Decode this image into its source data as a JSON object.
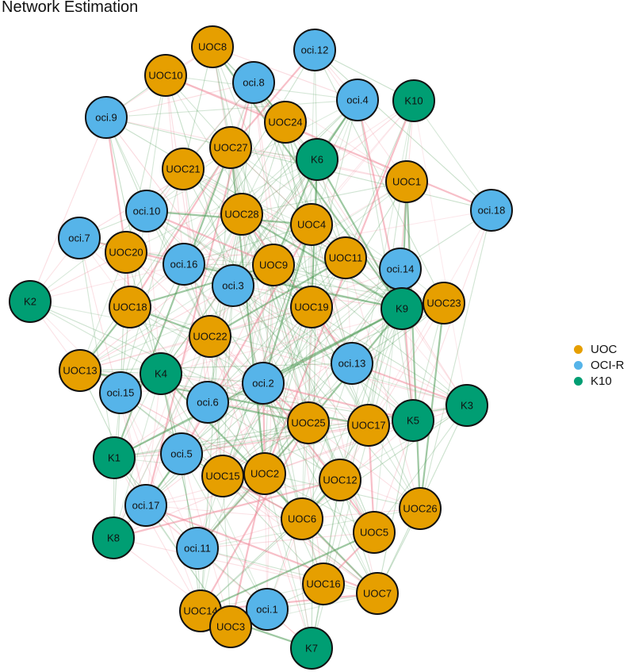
{
  "title": "Network Estimation",
  "legend": [
    {
      "label": "UOC",
      "color": "#E69F00"
    },
    {
      "label": "OCI-R",
      "color": "#56B4E9"
    },
    {
      "label": "K10",
      "color": "#009E73"
    }
  ],
  "edge_colors": {
    "positive": "#4e9a56",
    "negative": "#f08a9a"
  },
  "nodes": [
    {
      "id": "UOC8",
      "group": "UOC"
    },
    {
      "id": "oci.12",
      "group": "OCI-R"
    },
    {
      "id": "UOC10",
      "group": "UOC"
    },
    {
      "id": "oci.8",
      "group": "OCI-R"
    },
    {
      "id": "oci.4",
      "group": "OCI-R"
    },
    {
      "id": "K10",
      "group": "K10"
    },
    {
      "id": "oci.9",
      "group": "OCI-R"
    },
    {
      "id": "UOC24",
      "group": "UOC"
    },
    {
      "id": "UOC27",
      "group": "UOC"
    },
    {
      "id": "K6",
      "group": "K10"
    },
    {
      "id": "UOC21",
      "group": "UOC"
    },
    {
      "id": "UOC1",
      "group": "UOC"
    },
    {
      "id": "oci.18",
      "group": "OCI-R"
    },
    {
      "id": "oci.10",
      "group": "OCI-R"
    },
    {
      "id": "UOC28",
      "group": "UOC"
    },
    {
      "id": "UOC4",
      "group": "UOC"
    },
    {
      "id": "oci.7",
      "group": "OCI-R"
    },
    {
      "id": "UOC20",
      "group": "UOC"
    },
    {
      "id": "oci.16",
      "group": "OCI-R"
    },
    {
      "id": "UOC9",
      "group": "UOC"
    },
    {
      "id": "UOC11",
      "group": "UOC"
    },
    {
      "id": "oci.14",
      "group": "OCI-R"
    },
    {
      "id": "oci.3",
      "group": "OCI-R"
    },
    {
      "id": "UOC18",
      "group": "UOC"
    },
    {
      "id": "UOC19",
      "group": "UOC"
    },
    {
      "id": "UOC23",
      "group": "UOC"
    },
    {
      "id": "K2",
      "group": "K10"
    },
    {
      "id": "K9",
      "group": "K10"
    },
    {
      "id": "UOC22",
      "group": "UOC"
    },
    {
      "id": "oci.13",
      "group": "OCI-R"
    },
    {
      "id": "UOC13",
      "group": "UOC"
    },
    {
      "id": "K4",
      "group": "K10"
    },
    {
      "id": "oci.2",
      "group": "OCI-R"
    },
    {
      "id": "oci.15",
      "group": "OCI-R"
    },
    {
      "id": "oci.6",
      "group": "OCI-R"
    },
    {
      "id": "K3",
      "group": "K10"
    },
    {
      "id": "K5",
      "group": "K10"
    },
    {
      "id": "UOC25",
      "group": "UOC"
    },
    {
      "id": "UOC17",
      "group": "UOC"
    },
    {
      "id": "K1",
      "group": "K10"
    },
    {
      "id": "oci.5",
      "group": "OCI-R"
    },
    {
      "id": "UOC2",
      "group": "UOC"
    },
    {
      "id": "UOC15",
      "group": "UOC"
    },
    {
      "id": "UOC12",
      "group": "UOC"
    },
    {
      "id": "UOC26",
      "group": "UOC"
    },
    {
      "id": "oci.17",
      "group": "OCI-R"
    },
    {
      "id": "UOC6",
      "group": "UOC"
    },
    {
      "id": "UOC5",
      "group": "UOC"
    },
    {
      "id": "K8",
      "group": "K10"
    },
    {
      "id": "oci.11",
      "group": "OCI-R"
    },
    {
      "id": "UOC16",
      "group": "UOC"
    },
    {
      "id": "UOC7",
      "group": "UOC"
    },
    {
      "id": "UOC14",
      "group": "UOC"
    },
    {
      "id": "oci.1",
      "group": "OCI-R"
    },
    {
      "id": "UOC3",
      "group": "UOC"
    },
    {
      "id": "K7",
      "group": "K10"
    }
  ]
}
